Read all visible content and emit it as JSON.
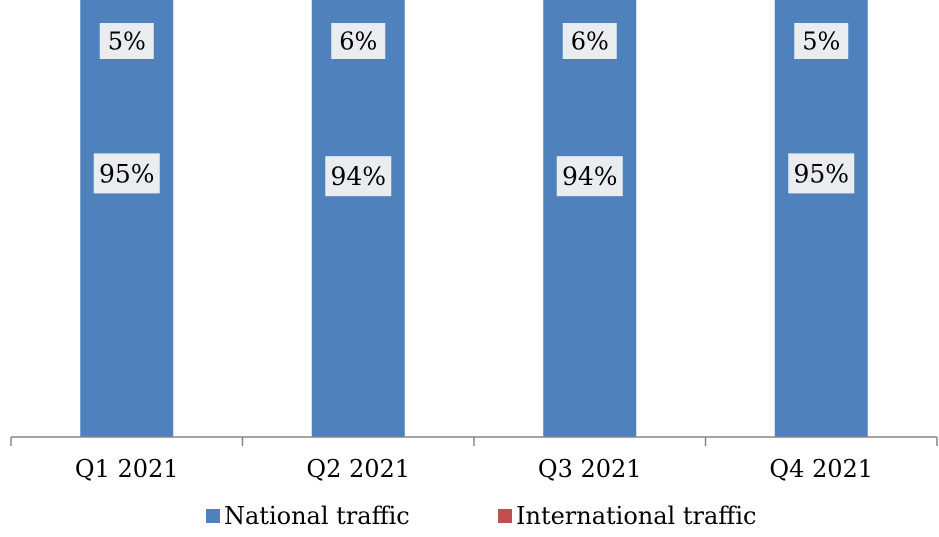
{
  "chart_data": {
    "type": "bar",
    "stacked": true,
    "percent_stacked": true,
    "categories": [
      "Q1 2021",
      "Q2 2021",
      "Q3 2021",
      "Q4 2021"
    ],
    "series": [
      {
        "name": "National traffic",
        "color": "#4F81BD",
        "values": [
          95,
          94,
          94,
          95
        ],
        "labels": [
          "95%",
          "94%",
          "94%",
          "95%"
        ]
      },
      {
        "name": "International traffic",
        "color": "#C0504D",
        "values": [
          5,
          6,
          6,
          5
        ],
        "labels": [
          "5%",
          "6%",
          "6%",
          "5%"
        ]
      }
    ],
    "ylim": [
      0,
      100
    ],
    "grid": false,
    "y_axis_visible": false,
    "legend_position": "bottom",
    "data_label_background": "#F2F2F2"
  }
}
